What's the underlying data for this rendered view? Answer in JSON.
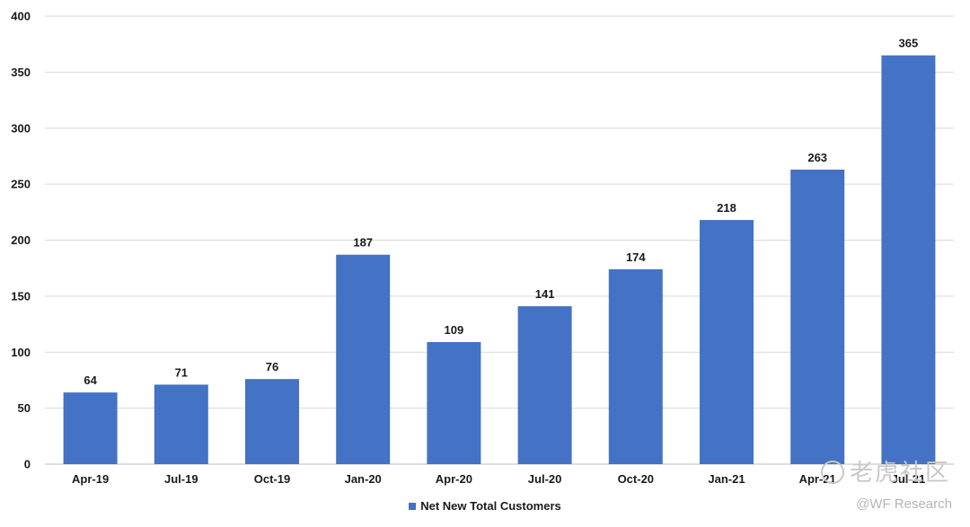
{
  "chart_data": {
    "type": "bar",
    "categories": [
      "Apr-19",
      "Jul-19",
      "Oct-19",
      "Jan-20",
      "Apr-20",
      "Jul-20",
      "Oct-20",
      "Jan-21",
      "Apr-21",
      "Jul-21"
    ],
    "series": [
      {
        "name": "Net New Total Customers",
        "values": [
          64,
          71,
          76,
          187,
          109,
          141,
          174,
          218,
          263,
          365
        ]
      }
    ],
    "title": "",
    "xlabel": "",
    "ylabel": "",
    "ylim": [
      0,
      400
    ],
    "yticks": [
      0,
      50,
      100,
      150,
      200,
      250,
      300,
      350,
      400
    ],
    "data_labels": true,
    "grid": "horizontal",
    "legend_position": "bottom-center",
    "bar_color": "#4472C4"
  },
  "watermark": {
    "logo_text": "老虎社区",
    "sub_text": "@WF Research"
  }
}
